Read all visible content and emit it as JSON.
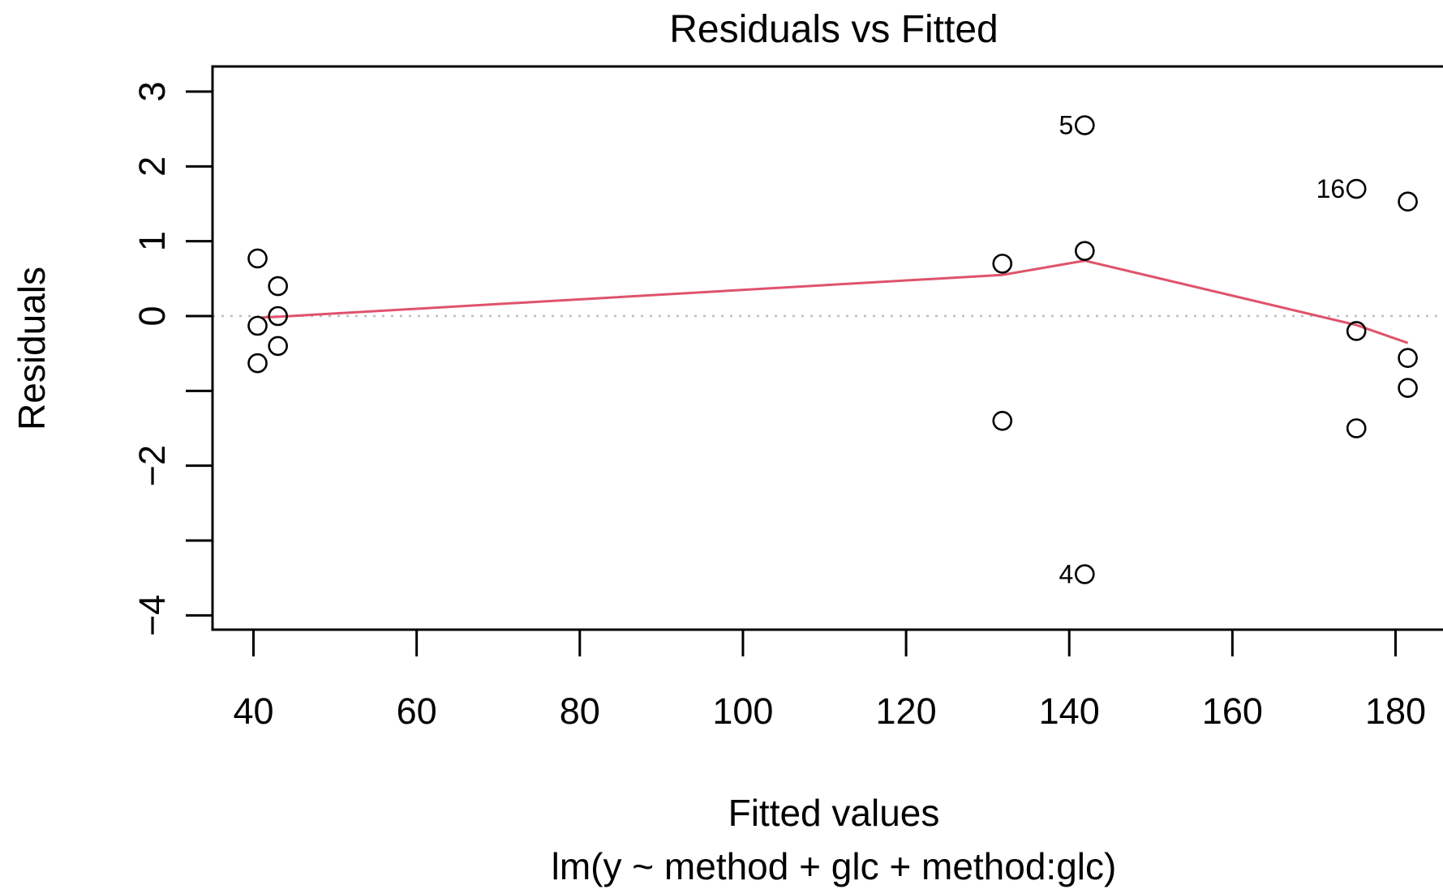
{
  "chart_data": {
    "type": "scatter",
    "title": "Residuals vs Fitted",
    "xlabel": "Fitted values",
    "subtitle": "lm(y ~ method + glc + method:glc)",
    "ylabel": "Residuals",
    "xlim": [
      35,
      185
    ],
    "ylim": [
      -4.2,
      3.35
    ],
    "x_ticks": [
      40,
      60,
      80,
      100,
      120,
      140,
      160,
      180
    ],
    "x_tick_labels": [
      "40",
      "60",
      "80",
      "100",
      "120",
      "140",
      "160",
      "180"
    ],
    "y_ticks": [
      -4,
      -3,
      -2,
      -1,
      0,
      1,
      2,
      3
    ],
    "y_tick_labels": [
      "−4",
      "",
      "−2",
      "",
      "0",
      "1",
      "2",
      "3"
    ],
    "grid": false,
    "reference_line_y": 0,
    "points": [
      {
        "x": 40.5,
        "y": 0.77,
        "label": ""
      },
      {
        "x": 40.5,
        "y": -0.13,
        "label": ""
      },
      {
        "x": 40.5,
        "y": -0.63,
        "label": ""
      },
      {
        "x": 43.0,
        "y": 0.4,
        "label": ""
      },
      {
        "x": 43.0,
        "y": 0.0,
        "label": ""
      },
      {
        "x": 43.0,
        "y": -0.4,
        "label": ""
      },
      {
        "x": 131.8,
        "y": 0.7,
        "label": ""
      },
      {
        "x": 131.8,
        "y": -1.4,
        "label": ""
      },
      {
        "x": 141.9,
        "y": 2.55,
        "label": "5"
      },
      {
        "x": 141.9,
        "y": 0.87,
        "label": ""
      },
      {
        "x": 141.9,
        "y": -3.45,
        "label": "4"
      },
      {
        "x": 175.2,
        "y": 1.7,
        "label": "16"
      },
      {
        "x": 175.2,
        "y": -0.2,
        "label": ""
      },
      {
        "x": 175.2,
        "y": -1.5,
        "label": ""
      },
      {
        "x": 181.5,
        "y": 1.53,
        "label": ""
      },
      {
        "x": 181.5,
        "y": -0.56,
        "label": ""
      },
      {
        "x": 181.5,
        "y": -0.96,
        "label": ""
      }
    ],
    "smooth_line": {
      "color": "#df536b",
      "points": [
        [
          41.0,
          -0.02
        ],
        [
          43.0,
          -0.01
        ],
        [
          131.8,
          0.55
        ],
        [
          141.9,
          0.74
        ],
        [
          175.2,
          -0.12
        ],
        [
          181.5,
          -0.36
        ]
      ]
    }
  }
}
